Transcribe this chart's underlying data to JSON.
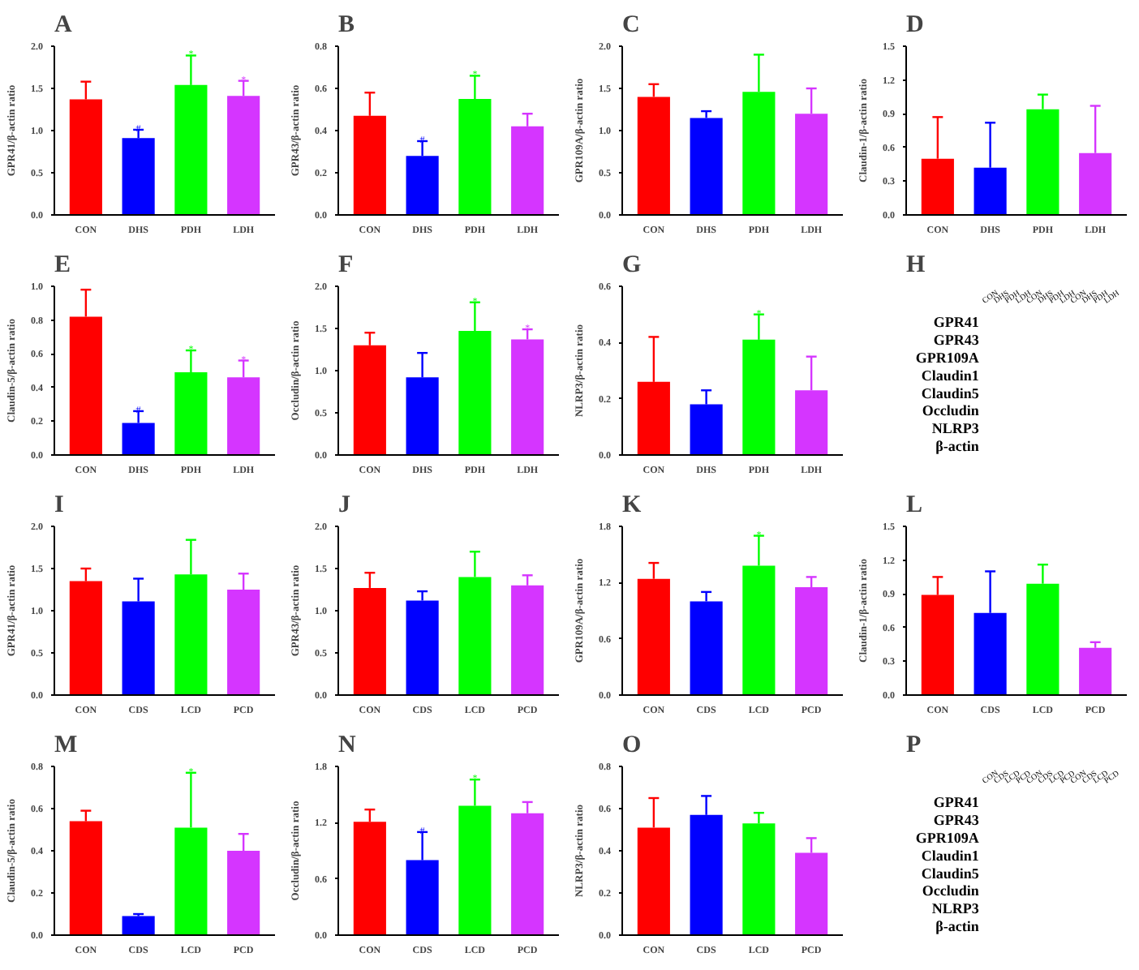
{
  "chart_data": [
    {
      "type": "bar",
      "title": "A",
      "ylabel": "GPR41/β-actin ratio",
      "categories": [
        "CON",
        "DHS",
        "PDH",
        "LDH"
      ],
      "colors": [
        "#ff0000",
        "#0000ff",
        "#00ff00",
        "#d535ff"
      ],
      "values": [
        1.37,
        0.91,
        1.54,
        1.41
      ],
      "errors": [
        [
          1.37,
          1.58
        ],
        [
          0.91,
          1.01
        ],
        [
          1.54,
          1.89
        ],
        [
          1.41,
          1.59
        ]
      ],
      "ylim": [
        0,
        2.0
      ],
      "yticks": [
        {
          "value": 0,
          "label": "0.0"
        },
        {
          "value": 0.5,
          "label": "0.5"
        },
        {
          "value": 1.0,
          "label": "1.0"
        },
        {
          "value": 1.5,
          "label": "1.5"
        },
        {
          "value": 2.0,
          "label": "2.0"
        }
      ],
      "annotations": [
        {
          "text": "#",
          "x": "DHS",
          "y": 1.01
        },
        {
          "text": "*",
          "x": "PDH",
          "y": 1.89
        },
        {
          "text": "*",
          "x": "LDH",
          "y": 1.59
        }
      ]
    },
    {
      "type": "bar",
      "title": "B",
      "ylabel": "GPR43/β-actin ratio",
      "categories": [
        "CON",
        "DHS",
        "PDH",
        "LDH"
      ],
      "colors": [
        "#ff0000",
        "#0000ff",
        "#00ff00",
        "#d535ff"
      ],
      "values": [
        0.47,
        0.28,
        0.55,
        0.42
      ],
      "errors": [
        [
          0.47,
          0.58
        ],
        [
          0.28,
          0.35
        ],
        [
          0.55,
          0.66
        ],
        [
          0.42,
          0.48
        ]
      ],
      "ylim": [
        0,
        0.8
      ],
      "yticks": [
        {
          "value": 0,
          "label": "0.0"
        },
        0.2,
        0.4,
        0.6,
        0.8
      ],
      "annotations": [
        {
          "text": "#",
          "x": "DHS",
          "y": 0.35
        },
        {
          "text": "*",
          "x": "PDH",
          "y": 0.66
        }
      ]
    },
    {
      "type": "bar",
      "title": "C",
      "ylabel": "GPR109A/β-actin ratio",
      "categories": [
        "CON",
        "DHS",
        "PDH",
        "LDH"
      ],
      "colors": [
        "#ff0000",
        "#0000ff",
        "#00ff00",
        "#d535ff"
      ],
      "values": [
        1.4,
        1.15,
        1.46,
        1.2
      ],
      "errors": [
        [
          1.4,
          1.55
        ],
        [
          1.15,
          1.23
        ],
        [
          1.46,
          1.9
        ],
        [
          1.2,
          1.5
        ]
      ],
      "ylim": [
        0,
        2.0
      ],
      "yticks": [
        {
          "value": 0,
          "label": "0.0"
        },
        0.5,
        {
          "value": 1.0,
          "label": "1.0"
        },
        1.5,
        {
          "value": 2.0,
          "label": "2.0"
        }
      ]
    },
    {
      "type": "bar",
      "title": "D",
      "ylabel": "Claudin-1/β-actin ratio",
      "categories": [
        "CON",
        "DHS",
        "PDH",
        "LDH"
      ],
      "colors": [
        "#ff0000",
        "#0000ff",
        "#00ff00",
        "#d535ff"
      ],
      "values": [
        0.5,
        0.42,
        0.94,
        0.55
      ],
      "errors": [
        [
          0.5,
          0.87
        ],
        [
          0.42,
          0.82
        ],
        [
          0.94,
          1.07
        ],
        [
          0.55,
          0.97
        ]
      ],
      "ylim": [
        0,
        1.5
      ],
      "yticks": [
        {
          "value": 0,
          "label": "0.0"
        },
        0.3,
        0.6,
        0.9,
        1.2,
        1.5
      ]
    },
    {
      "type": "bar",
      "title": "E",
      "ylabel": "Claudin-5/β-actin ratio",
      "categories": [
        "CON",
        "DHS",
        "PDH",
        "LDH"
      ],
      "colors": [
        "#ff0000",
        "#0000ff",
        "#00ff00",
        "#d535ff"
      ],
      "values": [
        0.82,
        0.19,
        0.49,
        0.46
      ],
      "errors": [
        [
          0.82,
          0.98
        ],
        [
          0.19,
          0.26
        ],
        [
          0.49,
          0.62
        ],
        [
          0.46,
          0.56
        ]
      ],
      "ylim": [
        0,
        1.0
      ],
      "yticks": [
        {
          "value": 0,
          "label": "0.0"
        },
        0.2,
        0.4,
        0.6,
        0.8,
        {
          "value": 1.0,
          "label": "1.0"
        }
      ],
      "annotations": [
        {
          "text": "#",
          "x": "DHS",
          "y": 0.26
        },
        {
          "text": "*",
          "x": "PDH",
          "y": 0.62
        },
        {
          "text": "*",
          "x": "LDH",
          "y": 0.56
        }
      ]
    },
    {
      "type": "bar",
      "title": "F",
      "ylabel": "Occludin/β-actin ratio",
      "categories": [
        "CON",
        "DHS",
        "PDH",
        "LDH"
      ],
      "colors": [
        "#ff0000",
        "#0000ff",
        "#00ff00",
        "#d535ff"
      ],
      "values": [
        1.3,
        0.92,
        1.47,
        1.37
      ],
      "errors": [
        [
          1.3,
          1.45
        ],
        [
          0.92,
          1.21
        ],
        [
          1.47,
          1.81
        ],
        [
          1.37,
          1.49
        ]
      ],
      "ylim": [
        0,
        2.0
      ],
      "yticks": [
        {
          "value": 0,
          "label": "0.0"
        },
        0.5,
        {
          "value": 1.0,
          "label": "1.0"
        },
        1.5,
        {
          "value": 2.0,
          "label": "2.0"
        }
      ],
      "annotations": [
        {
          "text": "*",
          "x": "PDH",
          "y": 1.81
        },
        {
          "text": "*",
          "x": "LDH",
          "y": 1.49
        }
      ]
    },
    {
      "type": "bar",
      "title": "G",
      "ylabel": "NLRP3/β-actin ratio",
      "categories": [
        "CON",
        "DHS",
        "PDH",
        "LDH"
      ],
      "colors": [
        "#ff0000",
        "#0000ff",
        "#00ff00",
        "#d535ff"
      ],
      "values": [
        0.26,
        0.18,
        0.41,
        0.23
      ],
      "errors": [
        [
          0.26,
          0.42
        ],
        [
          0.18,
          0.23
        ],
        [
          0.41,
          0.5
        ],
        [
          0.23,
          0.35
        ]
      ],
      "ylim": [
        0,
        0.6
      ],
      "yticks": [
        {
          "value": 0,
          "label": "0.0"
        },
        0.2,
        0.4,
        0.6
      ],
      "annotations": [
        {
          "text": "*",
          "x": "PDH",
          "y": 0.5
        }
      ]
    },
    {
      "type": "other",
      "title": "H",
      "categories": [
        "CON",
        "DHS",
        "PDH",
        "LDH",
        "CON",
        "DHS",
        "PDH",
        "LDH",
        "CON",
        "DHS",
        "PDH",
        "LDH"
      ],
      "y_categories": [
        "GPR41",
        "GPR43",
        "GPR109A",
        "Claudin1",
        "Claudin5",
        "Occludin",
        "NLRP3",
        "β-actin"
      ]
    },
    {
      "type": "bar",
      "title": "I",
      "ylabel": "GPR41/β-actin ratio",
      "categories": [
        "CON",
        "CDS",
        "LCD",
        "PCD"
      ],
      "colors": [
        "#ff0000",
        "#0000ff",
        "#00ff00",
        "#d535ff"
      ],
      "values": [
        1.35,
        1.11,
        1.43,
        1.25
      ],
      "errors": [
        [
          1.35,
          1.5
        ],
        [
          1.11,
          1.38
        ],
        [
          1.43,
          1.84
        ],
        [
          1.25,
          1.44
        ]
      ],
      "ylim": [
        0,
        2.0
      ],
      "yticks": [
        {
          "value": 0,
          "label": "0.0"
        },
        0.5,
        {
          "value": 1.0,
          "label": "1.0"
        },
        1.5,
        {
          "value": 2.0,
          "label": "2.0"
        }
      ]
    },
    {
      "type": "bar",
      "title": "J",
      "ylabel": "GPR43/β-actin ratio",
      "categories": [
        "CON",
        "CDS",
        "LCD",
        "PCD"
      ],
      "colors": [
        "#ff0000",
        "#0000ff",
        "#00ff00",
        "#d535ff"
      ],
      "values": [
        1.27,
        1.12,
        1.4,
        1.3
      ],
      "errors": [
        [
          1.27,
          1.45
        ],
        [
          1.12,
          1.23
        ],
        [
          1.4,
          1.7
        ],
        [
          1.3,
          1.42
        ]
      ],
      "ylim": [
        0,
        2.0
      ],
      "yticks": [
        {
          "value": 0,
          "label": "0.0"
        },
        0.5,
        {
          "value": 1.0,
          "label": "1.0"
        },
        1.5,
        {
          "value": 2.0,
          "label": "2.0"
        }
      ]
    },
    {
      "type": "bar",
      "title": "K",
      "ylabel": "GPR109A/β-actin ratio",
      "categories": [
        "CON",
        "CDS",
        "LCD",
        "PCD"
      ],
      "colors": [
        "#ff0000",
        "#0000ff",
        "#00ff00",
        "#d535ff"
      ],
      "values": [
        1.24,
        1.0,
        1.38,
        1.15
      ],
      "errors": [
        [
          1.24,
          1.41
        ],
        [
          1.0,
          1.1
        ],
        [
          1.38,
          1.7
        ],
        [
          1.15,
          1.26
        ]
      ],
      "ylim": [
        0,
        1.8
      ],
      "yticks": [
        {
          "value": 0,
          "label": "0.0"
        },
        0.6,
        1.2,
        1.8
      ],
      "annotations": [
        {
          "text": "*",
          "x": "LCD",
          "y": 1.7
        }
      ]
    },
    {
      "type": "bar",
      "title": "L",
      "ylabel": "Claudin-1/β-actin ratio",
      "categories": [
        "CON",
        "CDS",
        "LCD",
        "PCD"
      ],
      "colors": [
        "#ff0000",
        "#0000ff",
        "#00ff00",
        "#d535ff"
      ],
      "values": [
        0.89,
        0.73,
        0.99,
        0.42
      ],
      "errors": [
        [
          0.89,
          1.05
        ],
        [
          0.73,
          1.1
        ],
        [
          0.99,
          1.16
        ],
        [
          0.42,
          0.47
        ]
      ],
      "ylim": [
        0,
        1.5
      ],
      "yticks": [
        {
          "value": 0,
          "label": "0.0"
        },
        0.3,
        0.6,
        0.9,
        1.2,
        1.5
      ]
    },
    {
      "type": "bar",
      "title": "M",
      "ylabel": "Claudin-5/β-actin ratio",
      "categories": [
        "CON",
        "CDS",
        "LCD",
        "PCD"
      ],
      "colors": [
        "#ff0000",
        "#0000ff",
        "#00ff00",
        "#d535ff"
      ],
      "values": [
        0.54,
        0.09,
        0.51,
        0.4
      ],
      "errors": [
        [
          0.54,
          0.59
        ],
        [
          0.09,
          0.1
        ],
        [
          0.51,
          0.77
        ],
        [
          0.4,
          0.48
        ]
      ],
      "ylim": [
        0,
        0.8
      ],
      "yticks": [
        {
          "value": 0,
          "label": "0.0"
        },
        0.2,
        0.4,
        0.6,
        0.8
      ],
      "annotations": [
        {
          "text": "*",
          "x": "LCD",
          "y": 0.77
        }
      ]
    },
    {
      "type": "bar",
      "title": "N",
      "ylabel": "Occludin/β-actin ratio",
      "categories": [
        "CON",
        "CDS",
        "LCD",
        "PCD"
      ],
      "colors": [
        "#ff0000",
        "#0000ff",
        "#00ff00",
        "#d535ff"
      ],
      "values": [
        1.21,
        0.8,
        1.38,
        1.3
      ],
      "errors": [
        [
          1.21,
          1.34
        ],
        [
          0.8,
          1.1
        ],
        [
          1.38,
          1.66
        ],
        [
          1.3,
          1.42
        ]
      ],
      "ylim": [
        0,
        1.8
      ],
      "yticks": [
        {
          "value": 0,
          "label": "0.0"
        },
        0.6,
        1.2,
        1.8
      ],
      "annotations": [
        {
          "text": "#",
          "x": "CDS",
          "y": 1.1
        },
        {
          "text": "*",
          "x": "LCD",
          "y": 1.66
        }
      ]
    },
    {
      "type": "bar",
      "title": "O",
      "ylabel": "NLRP3/β-actin ratio",
      "categories": [
        "CON",
        "CDS",
        "LCD",
        "PCD"
      ],
      "colors": [
        "#ff0000",
        "#0000ff",
        "#00ff00",
        "#d535ff"
      ],
      "values": [
        0.51,
        0.57,
        0.53,
        0.39
      ],
      "errors": [
        [
          0.51,
          0.65
        ],
        [
          0.57,
          0.66
        ],
        [
          0.53,
          0.58
        ],
        [
          0.39,
          0.46
        ]
      ],
      "ylim": [
        0,
        0.8
      ],
      "yticks": [
        {
          "value": 0,
          "label": "0.0"
        },
        0.2,
        0.4,
        0.6,
        0.8
      ]
    },
    {
      "type": "other",
      "title": "P",
      "categories": [
        "CON",
        "CDS",
        "LCD",
        "PCD",
        "CON",
        "CDS",
        "LCD",
        "PCD",
        "CON",
        "CDS",
        "LCD",
        "PCD"
      ],
      "y_categories": [
        "GPR41",
        "GPR43",
        "GPR109A",
        "Claudin1",
        "Claudin5",
        "Occludin",
        "NLRP3",
        "β-actin"
      ]
    }
  ]
}
